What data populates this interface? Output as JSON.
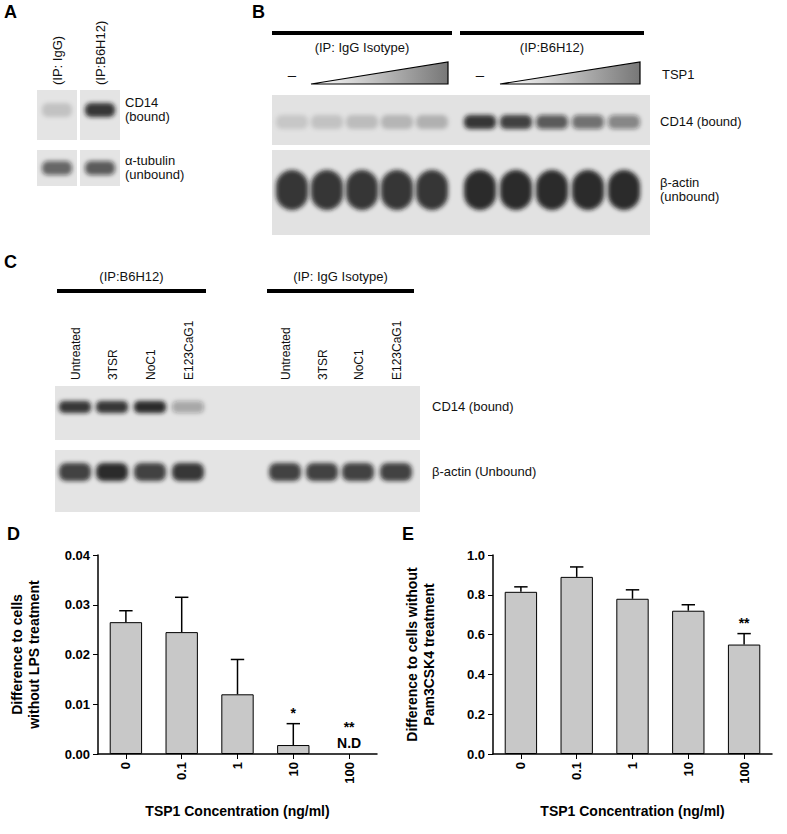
{
  "chart_data": [
    {
      "type": "bar",
      "title": "D",
      "categories": [
        "0",
        "0.1",
        "1",
        "10",
        "100"
      ],
      "values": [
        0.0265,
        0.0245,
        0.012,
        0.0018,
        null
      ],
      "errors": [
        0.0023,
        0.007,
        0.007,
        0.0043,
        null
      ],
      "color": "#c8c8c8",
      "xlabel": "TSP1 Concentration (ng/ml)",
      "ylabel": "Difference to cells\nwithout LPS treatment",
      "ylim": [
        0,
        0.04
      ],
      "yticks": [
        {
          "value": 0,
          "label": "0.00"
        },
        {
          "value": 0.01,
          "label": "0.01"
        },
        {
          "value": 0.02,
          "label": "0.02"
        },
        {
          "value": 0.03,
          "label": "0.03"
        },
        {
          "value": 0.04,
          "label": "0.04"
        }
      ],
      "grid": false,
      "annotations": [
        {
          "category": "10",
          "text": "*"
        },
        {
          "category": "100",
          "text": "**"
        },
        {
          "category": "100",
          "text": "N.D"
        }
      ]
    },
    {
      "type": "bar",
      "title": "E",
      "categories": [
        "0",
        "0.1",
        "1",
        "10",
        "100"
      ],
      "values": [
        0.815,
        0.89,
        0.78,
        0.72,
        0.55
      ],
      "errors": [
        0.025,
        0.05,
        0.045,
        0.03,
        0.055
      ],
      "color": "#c8c8c8",
      "xlabel": "TSP1 Concentration (ng/ml)",
      "ylabel": "Difference to cells without\nPam3CSK4 treatment",
      "ylim": [
        0,
        1.0
      ],
      "yticks": [
        {
          "value": 0,
          "label": "0.0"
        },
        {
          "value": 0.2,
          "label": "0.2"
        },
        {
          "value": 0.4,
          "label": "0.4"
        },
        {
          "value": 0.6,
          "label": "0.6"
        },
        {
          "value": 0.8,
          "label": "0.8"
        },
        {
          "value": 1.0,
          "label": "1.0"
        }
      ],
      "grid": false,
      "annotations": [
        {
          "category": "100",
          "text": "**"
        }
      ]
    }
  ],
  "blots": [
    {
      "panel": "A",
      "groups": [
        {
          "label": "(IP: IgG)"
        },
        {
          "label": "(IP:B6H12)"
        }
      ],
      "rows": [
        {
          "label": "CD14\n(bound)",
          "bands": [
            0.15,
            0.85
          ]
        },
        {
          "label": "α-tubulin\n(unbound)",
          "bands": [
            0.6,
            0.65
          ]
        }
      ]
    },
    {
      "panel": "B",
      "groups": [
        {
          "label": "(IP: IgG Isotype)",
          "lanes": [
            "–",
            null,
            null,
            null,
            null
          ]
        },
        {
          "label": "(IP:B6H12)",
          "lanes": [
            "–",
            null,
            null,
            null,
            null
          ]
        }
      ],
      "treatment": "TSP1",
      "rows": [
        {
          "label": "CD14 (bound)",
          "bands": [
            0.12,
            0.14,
            0.17,
            0.2,
            0.22,
            0.85,
            0.8,
            0.65,
            0.55,
            0.45
          ]
        },
        {
          "label": "β-actin\n(unbound)",
          "bands": [
            0.85,
            0.85,
            0.85,
            0.85,
            0.85,
            0.9,
            0.9,
            0.9,
            0.9,
            0.9
          ]
        }
      ]
    },
    {
      "panel": "C",
      "groups": [
        {
          "label": "(IP:B6H12)",
          "lanes": [
            "Untreated",
            "3TSR",
            "NoC1",
            "E123CaG1"
          ]
        },
        {
          "label": "(IP: IgG Isotype)",
          "lanes": [
            "Untreated",
            "3TSR",
            "NoC1",
            "E123CaG1"
          ]
        }
      ],
      "rows": [
        {
          "label": "CD14 (bound)",
          "bands": [
            0.85,
            0.85,
            0.9,
            0.3,
            0,
            0,
            0,
            0
          ]
        },
        {
          "label": "β-actin (Unbound)",
          "bands": [
            0.8,
            0.9,
            0.8,
            0.85,
            0.8,
            0.8,
            0.8,
            0.8
          ]
        }
      ]
    }
  ]
}
